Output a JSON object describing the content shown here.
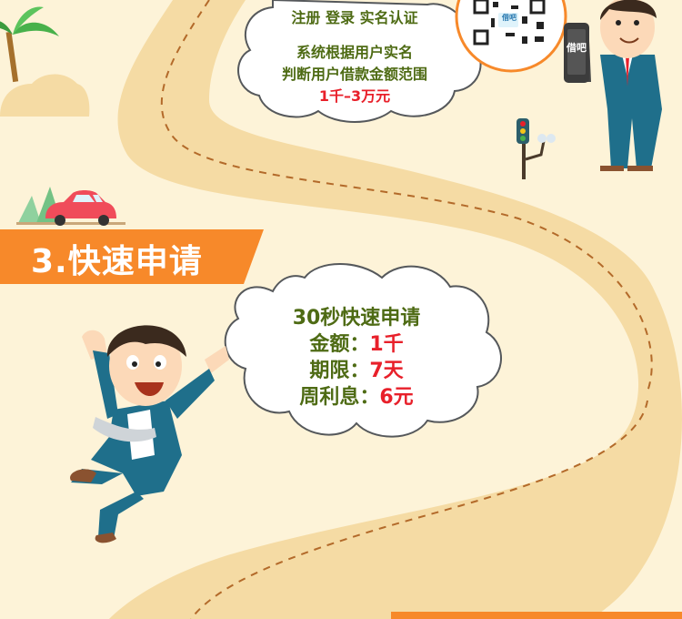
{
  "step1_cloud": {
    "line1": "注册 登录 实名认证",
    "line2": "系统根据用户实名",
    "line3": "判断用户借款金额范围",
    "line4": "1千–3万元"
  },
  "qr_label": "借吧",
  "phone_label": "借吧",
  "section3": {
    "title": "3.快速申请"
  },
  "step3_cloud": {
    "headline": "30秒快速申请",
    "amount_label": "金额：",
    "amount_value": "1千",
    "term_label": "期限：",
    "term_value": "7天",
    "interest_label": "周利息：",
    "interest_value": "6元"
  },
  "colors": {
    "background": "#fdf3d8",
    "road": "#f5dba4",
    "banner": "#f7892a",
    "text_green": "#4e6b14",
    "text_red": "#e8202a",
    "suit": "#1f6f8b"
  }
}
